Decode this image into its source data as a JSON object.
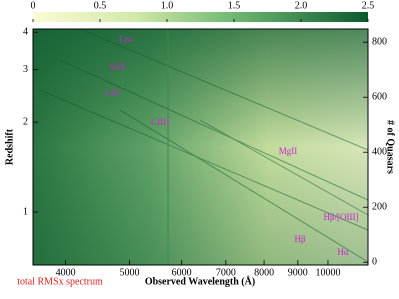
{
  "chart_data": {
    "type": "heatmap",
    "xlabel": "Observed Wavelength (Å)",
    "ylabel": "Redshift",
    "y2label": "# of Quasars",
    "footnote": "total RMSx spectrum",
    "xscale": "log",
    "xlim": [
      3570,
      11500
    ],
    "xticks": [
      4000,
      5000,
      6000,
      7000,
      8000,
      9000,
      10000
    ],
    "yscale": "log",
    "ylim": [
      0.665,
      4.1
    ],
    "yticks": [
      1,
      2,
      3,
      4
    ],
    "y2lim": [
      -10,
      848
    ],
    "y2ticks": [
      0,
      200,
      400,
      600,
      800
    ],
    "colorbar": {
      "lim": [
        0,
        2.5
      ],
      "ticks": [
        0,
        0.5,
        {
          "value": 1,
          "label": "1.0"
        },
        1.5,
        {
          "value": 2,
          "label": "2.0"
        },
        2.5
      ]
    },
    "annotations": [
      "Lyα",
      "SiIV",
      "CIV",
      "CIII]",
      "MgII",
      "Hβ/[OIII]",
      "Hβ",
      "Hα"
    ]
  }
}
